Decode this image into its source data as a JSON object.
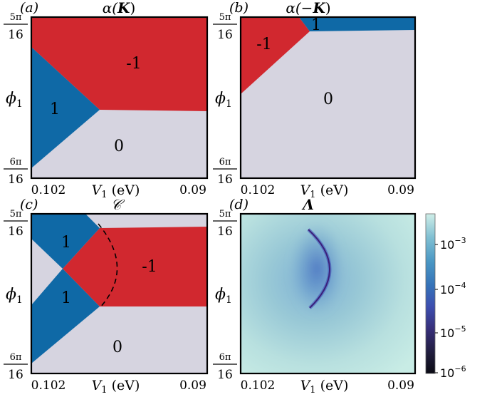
{
  "colors": {
    "red": "#d1282f",
    "blue": "#0f69a6",
    "gray": "#d6d4e0"
  },
  "panels": [
    {
      "tag": "(a)",
      "title_sym": "α(",
      "title_bold": "K",
      "title_end": ")"
    },
    {
      "tag": "(b)",
      "title_sym": "α(−",
      "title_bold": "K",
      "title_end": ")"
    },
    {
      "tag": "(c)",
      "title_sym": "𝒞",
      "title_bold": "",
      "title_end": ""
    },
    {
      "tag": "(d)",
      "title_sym": "",
      "title_bold": "Λ",
      "title_end": ""
    }
  ],
  "axes": {
    "ylabel_main": "ϕ",
    "ylabel_sub": "1",
    "ytick_top_num": "5π",
    "ytick_top_den": "16",
    "ytick_bottom_num": "6π",
    "ytick_bottom_den": "16",
    "xtick_left": "0.102",
    "xtick_right": "0.09",
    "xlabel_main": "V",
    "xlabel_sub": "1",
    "xlabel_unit": " (eV)"
  },
  "region_labels": {
    "a_minus1": "-1",
    "a_one": "1",
    "a_zero": "0",
    "b_minus1": "-1",
    "b_one": "1",
    "b_zero": "0",
    "c_one_top": "1",
    "c_one_bottom": "1",
    "c_minus1": "-1",
    "c_zero": "0"
  },
  "colorbar": {
    "ticks": [
      {
        "base": "10",
        "exp": "−3"
      },
      {
        "base": "10",
        "exp": "−4"
      },
      {
        "base": "10",
        "exp": "−5"
      },
      {
        "base": "10",
        "exp": "−6"
      }
    ]
  },
  "chart_data": [
    {
      "type": "heatmap",
      "title": "α(K)",
      "panel": "(a)",
      "xlabel": "V1 (eV)",
      "ylabel": "ϕ1",
      "xlim": [
        0.102,
        0.09
      ],
      "x_ticks": [
        "0.102",
        "0.09"
      ],
      "y_ticks": [
        "5π/16",
        "6π/16"
      ],
      "regions": [
        {
          "value": -1,
          "color": "red"
        },
        {
          "value": 1,
          "color": "blue"
        },
        {
          "value": 0,
          "color": "gray"
        }
      ]
    },
    {
      "type": "heatmap",
      "title": "α(−K)",
      "panel": "(b)",
      "xlabel": "V1 (eV)",
      "ylabel": "ϕ1",
      "xlim": [
        0.102,
        0.09
      ],
      "x_ticks": [
        "0.102",
        "0.09"
      ],
      "y_ticks": [
        "5π/16",
        "6π/16"
      ],
      "regions": [
        {
          "value": -1,
          "color": "red"
        },
        {
          "value": 1,
          "color": "blue"
        },
        {
          "value": 0,
          "color": "gray"
        }
      ]
    },
    {
      "type": "heatmap",
      "title": "𝒞",
      "panel": "(c)",
      "xlabel": "V1 (eV)",
      "ylabel": "ϕ1",
      "xlim": [
        0.102,
        0.09
      ],
      "x_ticks": [
        "0.102",
        "0.09"
      ],
      "y_ticks": [
        "5π/16",
        "6π/16"
      ],
      "regions": [
        {
          "value": 1,
          "color": "blue"
        },
        {
          "value": 1,
          "color": "blue"
        },
        {
          "value": -1,
          "color": "red"
        },
        {
          "value": 0,
          "color": "gray"
        }
      ]
    },
    {
      "type": "heatmap",
      "title": "Λ",
      "panel": "(d)",
      "xlabel": "V1 (eV)",
      "ylabel": "ϕ1",
      "xlim": [
        0.102,
        0.09
      ],
      "x_ticks": [
        "0.102",
        "0.09"
      ],
      "y_ticks": [
        "5π/16",
        "6π/16"
      ],
      "colorbar_scale": "log",
      "colorbar_range": [
        1e-06,
        0.005
      ],
      "colorbar_ticks": [
        "10^-3",
        "10^-4",
        "10^-5",
        "10^-6"
      ]
    }
  ]
}
